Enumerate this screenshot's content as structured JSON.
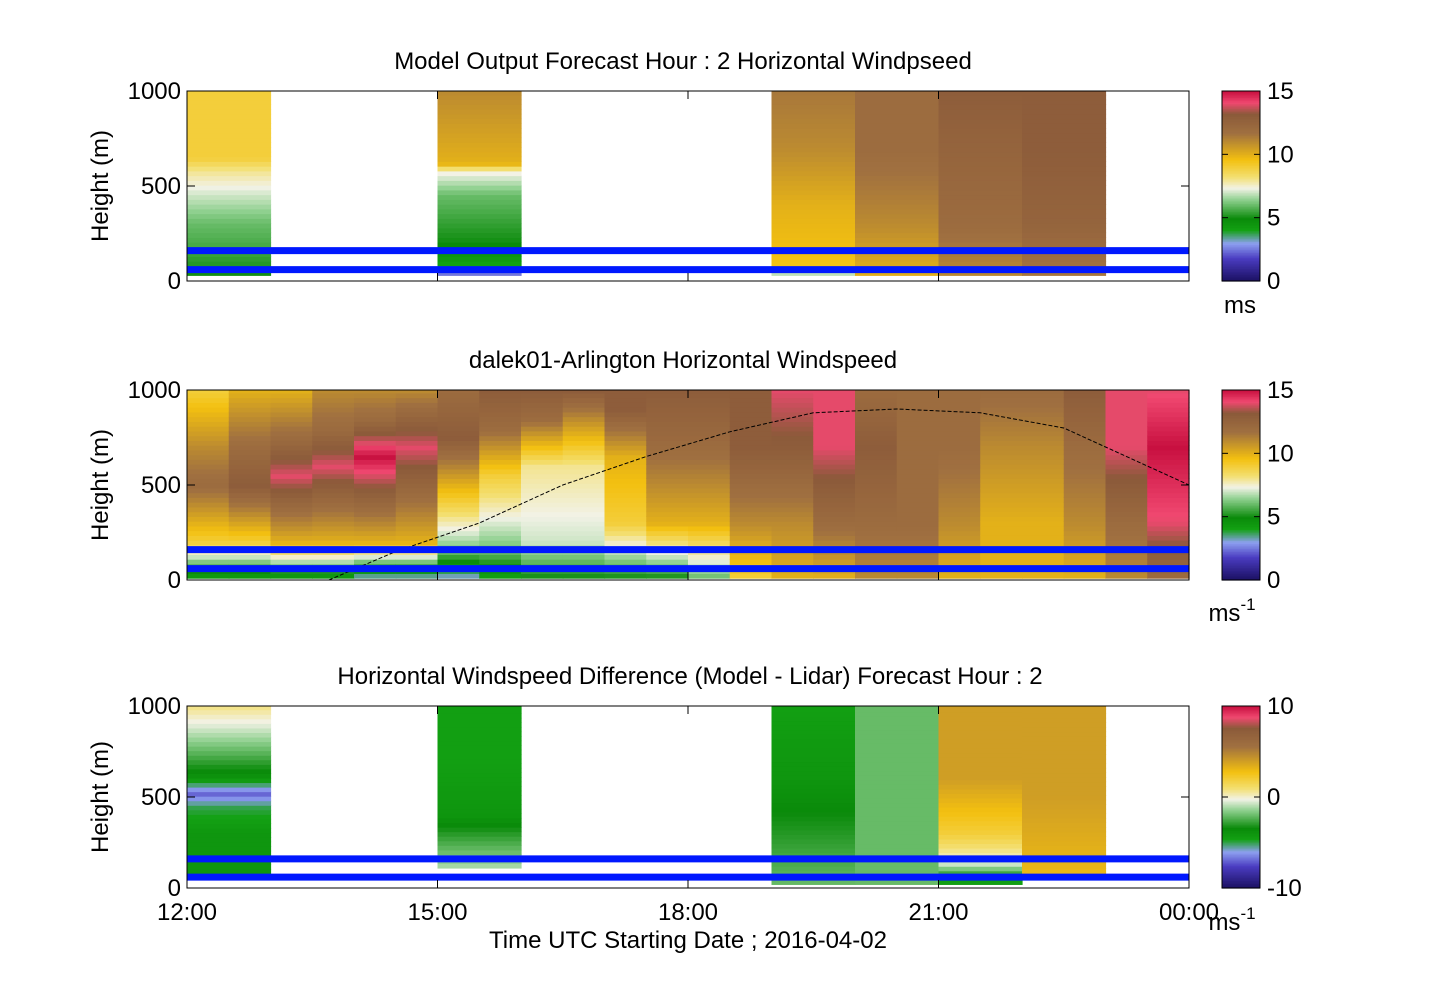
{
  "figure": {
    "xlabel": "Time UTC  Starting Date ; 2016-04-02",
    "xticks": [
      "12:00",
      "15:00",
      "18:00",
      "21:00",
      "00:00"
    ]
  },
  "colormap_stops": [
    {
      "v": 0.0,
      "c": "#1a0f60"
    },
    {
      "v": 0.12,
      "c": "#4a3cc0"
    },
    {
      "v": 0.2,
      "c": "#8ea0f0"
    },
    {
      "v": 0.27,
      "c": "#13a113"
    },
    {
      "v": 0.33,
      "c": "#0a8a0a"
    },
    {
      "v": 0.43,
      "c": "#8fd08f"
    },
    {
      "v": 0.49,
      "c": "#f2f2e6"
    },
    {
      "v": 0.55,
      "c": "#f3df70"
    },
    {
      "v": 0.64,
      "c": "#f3c010"
    },
    {
      "v": 0.78,
      "c": "#a07040"
    },
    {
      "v": 0.88,
      "c": "#8b5a3a"
    },
    {
      "v": 0.94,
      "c": "#f04870"
    },
    {
      "v": 1.0,
      "c": "#c81040"
    }
  ],
  "overlay_line_color": "#0018ff",
  "chart_data": [
    {
      "type": "heatmap",
      "title": "Model Output   Forecast Hour : 2 Horizontal Windpseed",
      "ylabel": "Height (m)",
      "ylim": [
        0,
        1000
      ],
      "yticks": [
        "0",
        "500",
        "1000"
      ],
      "x_range_hours": [
        12,
        24
      ],
      "colorbar": {
        "min": 0,
        "max": 15,
        "ticks": [
          "0",
          "5",
          "10",
          "15"
        ],
        "unit": "ms"
      },
      "overlay_heights_m": [
        60,
        160
      ],
      "blocks": [
        {
          "t": 12,
          "profile": [
            [
              30,
              5
            ],
            [
              150,
              5.5
            ],
            [
              300,
              6
            ],
            [
              450,
              7
            ],
            [
              580,
              8
            ],
            [
              650,
              9
            ],
            [
              1000,
              9
            ]
          ]
        },
        {
          "t": 15,
          "profile": [
            [
              30,
              2
            ],
            [
              80,
              4
            ],
            [
              200,
              5
            ],
            [
              450,
              6
            ],
            [
              580,
              7.5
            ],
            [
              620,
              10
            ],
            [
              1000,
              11
            ]
          ]
        },
        {
          "t": 19,
          "profile": [
            [
              30,
              6
            ],
            [
              80,
              9.5
            ],
            [
              400,
              10
            ],
            [
              700,
              11
            ],
            [
              1000,
              11.5
            ]
          ]
        },
        {
          "t": 20,
          "profile": [
            [
              30,
              10
            ],
            [
              300,
              11
            ],
            [
              700,
              12
            ],
            [
              1000,
              12
            ]
          ]
        },
        {
          "t": 21,
          "profile": [
            [
              30,
              11
            ],
            [
              300,
              12
            ],
            [
              700,
              12.5
            ],
            [
              1000,
              13
            ]
          ]
        },
        {
          "t": 22,
          "profile": [
            [
              30,
              11.5
            ],
            [
              300,
              12.5
            ],
            [
              700,
              13
            ],
            [
              1000,
              13
            ]
          ]
        }
      ]
    },
    {
      "type": "heatmap",
      "title": "dalek01-Arlington  Horizontal Windspeed",
      "ylabel": "Height (m)",
      "ylim": [
        0,
        1000
      ],
      "yticks": [
        "0",
        "500",
        "1000"
      ],
      "x_range_hours": [
        12,
        24
      ],
      "colorbar": {
        "min": 0,
        "max": 15,
        "ticks": [
          "0",
          "5",
          "10",
          "15"
        ],
        "unit": "ms",
        "unit_sup": "-1"
      },
      "overlay_heights_m": [
        60,
        160
      ],
      "boundary_layer_curve": [
        [
          13.7,
          0
        ],
        [
          14.5,
          150
        ],
        [
          15.5,
          300
        ],
        [
          16.5,
          500
        ],
        [
          17.5,
          650
        ],
        [
          18.5,
          780
        ],
        [
          19.5,
          880
        ],
        [
          20.5,
          900
        ],
        [
          21.5,
          880
        ],
        [
          22.5,
          800
        ],
        [
          23.5,
          600
        ],
        [
          24,
          500
        ]
      ],
      "columns": [
        {
          "t": 12.0,
          "profile": [
            [
              10,
              4
            ],
            [
              200,
              9
            ],
            [
              500,
              12
            ],
            [
              700,
              11
            ],
            [
              1000,
              9
            ]
          ]
        },
        {
          "t": 12.5,
          "profile": [
            [
              10,
              4
            ],
            [
              200,
              9
            ],
            [
              500,
              13
            ],
            [
              700,
              12
            ],
            [
              1000,
              10
            ]
          ]
        },
        {
          "t": 13.0,
          "profile": [
            [
              10,
              4
            ],
            [
              200,
              10
            ],
            [
              550,
              14
            ],
            [
              750,
              12
            ],
            [
              1000,
              10
            ]
          ]
        },
        {
          "t": 13.5,
          "profile": [
            [
              10,
              4
            ],
            [
              200,
              10
            ],
            [
              600,
              14
            ],
            [
              800,
              12
            ],
            [
              1000,
              11
            ]
          ]
        },
        {
          "t": 14.0,
          "profile": [
            [
              10,
              3
            ],
            [
              200,
              10
            ],
            [
              650,
              15
            ],
            [
              850,
              12
            ],
            [
              1000,
              11
            ]
          ]
        },
        {
          "t": 14.5,
          "profile": [
            [
              10,
              3
            ],
            [
              200,
              10
            ],
            [
              700,
              14
            ],
            [
              900,
              12
            ],
            [
              1000,
              11
            ]
          ]
        },
        {
          "t": 15.0,
          "profile": [
            [
              10,
              3
            ],
            [
              150,
              6
            ],
            [
              500,
              10
            ],
            [
              750,
              13
            ],
            [
              1000,
              12
            ]
          ]
        },
        {
          "t": 15.5,
          "profile": [
            [
              10,
              4
            ],
            [
              150,
              6
            ],
            [
              550,
              9
            ],
            [
              800,
              12
            ],
            [
              1000,
              13
            ]
          ]
        },
        {
          "t": 16.0,
          "profile": [
            [
              10,
              5
            ],
            [
              200,
              7
            ],
            [
              600,
              8
            ],
            [
              850,
              12
            ],
            [
              1000,
              13
            ]
          ]
        },
        {
          "t": 16.5,
          "profile": [
            [
              10,
              5
            ],
            [
              200,
              7
            ],
            [
              600,
              8
            ],
            [
              850,
              11
            ],
            [
              1000,
              13
            ]
          ]
        },
        {
          "t": 17.0,
          "profile": [
            [
              10,
              5
            ],
            [
              300,
              9
            ],
            [
              650,
              10
            ],
            [
              900,
              13
            ],
            [
              1000,
              13
            ]
          ]
        },
        {
          "t": 17.5,
          "profile": [
            [
              10,
              5
            ],
            [
              300,
              10
            ],
            [
              700,
              12
            ],
            [
              1000,
              13
            ]
          ]
        },
        {
          "t": 18.0,
          "profile": [
            [
              10,
              6
            ],
            [
              300,
              10
            ],
            [
              700,
              12
            ],
            [
              1000,
              13
            ]
          ]
        },
        {
          "t": 18.5,
          "profile": [
            [
              10,
              9
            ],
            [
              300,
              11
            ],
            [
              700,
              13
            ],
            [
              1000,
              13
            ]
          ]
        },
        {
          "t": 19.0,
          "profile": [
            [
              10,
              10
            ],
            [
              300,
              11
            ],
            [
              700,
              13
            ],
            [
              1000,
              14
            ]
          ]
        },
        {
          "t": 19.5,
          "profile": [
            [
              10,
              10
            ],
            [
              300,
              12
            ],
            [
              700,
              14
            ],
            [
              1000,
              14
            ]
          ]
        },
        {
          "t": 20.0,
          "profile": [
            [
              10,
              11
            ],
            [
              300,
              12
            ],
            [
              700,
              13
            ],
            [
              1000,
              12
            ]
          ]
        },
        {
          "t": 20.5,
          "profile": [
            [
              10,
              11
            ],
            [
              300,
              12
            ],
            [
              700,
              12
            ],
            [
              1000,
              12
            ]
          ]
        },
        {
          "t": 21.0,
          "profile": [
            [
              10,
              10
            ],
            [
              300,
              11
            ],
            [
              700,
              12
            ],
            [
              1000,
              12
            ]
          ]
        },
        {
          "t": 21.5,
          "profile": [
            [
              10,
              10
            ],
            [
              300,
              10
            ],
            [
              700,
              11
            ],
            [
              1000,
              12
            ]
          ]
        },
        {
          "t": 22.0,
          "profile": [
            [
              10,
              10
            ],
            [
              300,
              10
            ],
            [
              700,
              11
            ],
            [
              1000,
              12
            ]
          ]
        },
        {
          "t": 22.5,
          "profile": [
            [
              10,
              10
            ],
            [
              300,
              11
            ],
            [
              700,
              12
            ],
            [
              1000,
              13
            ]
          ]
        },
        {
          "t": 23.0,
          "profile": [
            [
              10,
              11
            ],
            [
              300,
              12
            ],
            [
              700,
              14
            ],
            [
              1000,
              14
            ]
          ]
        },
        {
          "t": 23.5,
          "profile": [
            [
              10,
              12
            ],
            [
              300,
              14
            ],
            [
              700,
              15
            ],
            [
              1000,
              14
            ]
          ]
        }
      ]
    },
    {
      "type": "heatmap",
      "title": "Horizontal Windspeed Difference (Model - Lidar) Forecast Hour : 2",
      "ylabel": "Height (m)",
      "ylim": [
        0,
        1000
      ],
      "yticks": [
        "0",
        "500",
        "1000"
      ],
      "x_range_hours": [
        12,
        24
      ],
      "colorbar": {
        "min": -10,
        "max": 10,
        "ticks": [
          "-10",
          "0",
          "10"
        ],
        "unit": "ms",
        "unit_sup": "-1"
      },
      "overlay_heights_m": [
        60,
        160
      ],
      "blocks": [
        {
          "t": 12,
          "profile": [
            [
              80,
              -4
            ],
            [
              300,
              -4
            ],
            [
              450,
              -5
            ],
            [
              520,
              -7
            ],
            [
              600,
              -4
            ],
            [
              800,
              -1.5
            ],
            [
              1000,
              0.8
            ]
          ]
        },
        {
          "t": 15,
          "profile": [
            [
              110,
              -1
            ],
            [
              400,
              -4
            ],
            [
              700,
              -4.5
            ],
            [
              1000,
              -4.5
            ]
          ]
        },
        {
          "t": 19,
          "profile": [
            [
              20,
              -2
            ],
            [
              300,
              -3
            ],
            [
              600,
              -4
            ],
            [
              1000,
              -4.5
            ]
          ]
        },
        {
          "t": 20,
          "profile": [
            [
              20,
              -2
            ],
            [
              500,
              -2
            ],
            [
              1000,
              -2
            ]
          ]
        },
        {
          "t": 21,
          "profile": [
            [
              20,
              -5
            ],
            [
              150,
              0
            ],
            [
              300,
              2
            ],
            [
              600,
              4
            ],
            [
              1000,
              4
            ]
          ]
        },
        {
          "t": 22,
          "profile": [
            [
              60,
              3
            ],
            [
              500,
              4
            ],
            [
              1000,
              4
            ]
          ]
        }
      ]
    }
  ]
}
